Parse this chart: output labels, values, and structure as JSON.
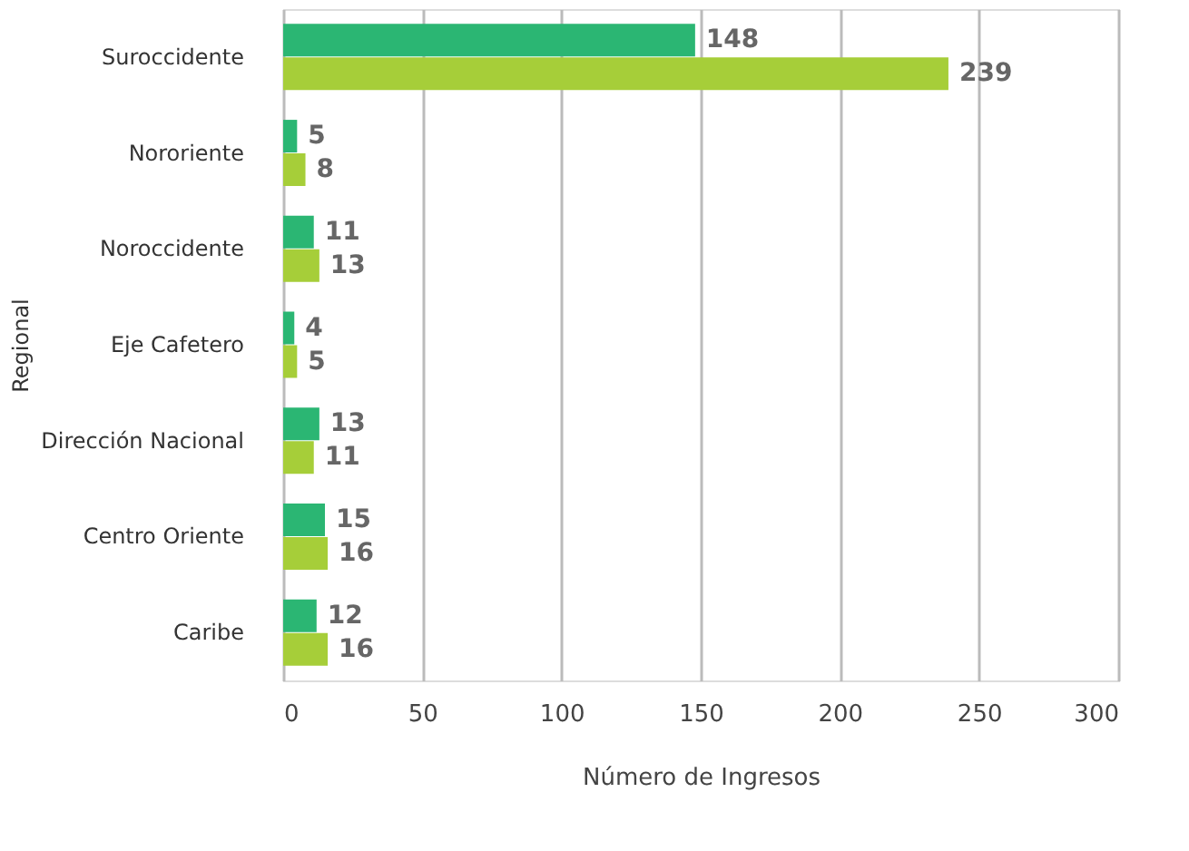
{
  "chart_data": {
    "type": "bar",
    "orientation": "horizontal",
    "xlabel": "Número de Ingresos",
    "ylabel": "Regional",
    "categories": [
      "Suroccidente",
      "Nororiente",
      "Noroccidente",
      "Eje Cafetero",
      "Dirección Nacional",
      "Centro Oriente",
      "Caribe"
    ],
    "series": [
      {
        "color": "#2bb673",
        "values": [
          148,
          5,
          11,
          4,
          13,
          15,
          12
        ]
      },
      {
        "color": "#a6ce39",
        "values": [
          239,
          8,
          13,
          5,
          11,
          16,
          16
        ]
      }
    ],
    "xlim": [
      0,
      300
    ],
    "xticks": [
      0,
      50,
      100,
      150,
      200,
      250,
      300
    ],
    "grid": "x",
    "data_labels": true
  }
}
